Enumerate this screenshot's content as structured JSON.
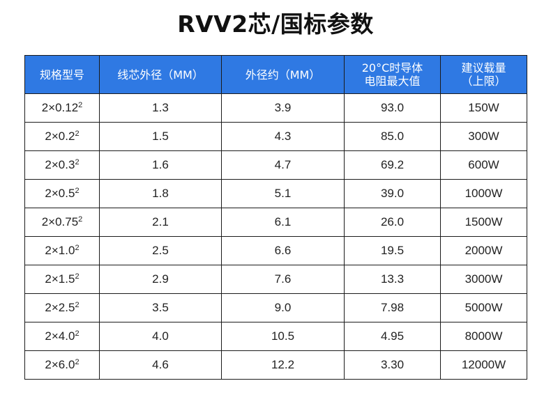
{
  "title": "RVV2芯/国标参数",
  "table": {
    "headers": [
      {
        "lines": [
          "规格型号"
        ]
      },
      {
        "lines": [
          "线芯外径（MM）"
        ]
      },
      {
        "lines": [
          "外径约（MM）"
        ]
      },
      {
        "lines": [
          "20°C时导体",
          "电阻最大值"
        ]
      },
      {
        "lines": [
          "建议载量",
          "（上限）"
        ]
      }
    ],
    "rows": [
      {
        "spec": "2×0.12",
        "sup": "2",
        "core": "1.3",
        "outer": "3.9",
        "resistance": "93.0",
        "load": "150W"
      },
      {
        "spec": "2×0.2",
        "sup": "2",
        "core": "1.5",
        "outer": "4.3",
        "resistance": "85.0",
        "load": "300W"
      },
      {
        "spec": "2×0.3",
        "sup": "2",
        "core": "1.6",
        "outer": "4.7",
        "resistance": "69.2",
        "load": "600W"
      },
      {
        "spec": "2×0.5",
        "sup": "2",
        "core": "1.8",
        "outer": "5.1",
        "resistance": "39.0",
        "load": "1000W"
      },
      {
        "spec": "2×0.75",
        "sup": "2",
        "core": "2.1",
        "outer": "6.1",
        "resistance": "26.0",
        "load": "1500W"
      },
      {
        "spec": "2×1.0",
        "sup": "2",
        "core": "2.5",
        "outer": "6.6",
        "resistance": "19.5",
        "load": "2000W"
      },
      {
        "spec": "2×1.5",
        "sup": "2",
        "core": "2.9",
        "outer": "7.6",
        "resistance": "13.3",
        "load": "3000W"
      },
      {
        "spec": "2×2.5",
        "sup": "2",
        "core": "3.5",
        "outer": "9.0",
        "resistance": "7.98",
        "load": "5000W"
      },
      {
        "spec": "2×4.0",
        "sup": "2",
        "core": "4.0",
        "outer": "10.5",
        "resistance": "4.95",
        "load": "8000W"
      },
      {
        "spec": "2×6.0",
        "sup": "2",
        "core": "4.6",
        "outer": "12.2",
        "resistance": "3.30",
        "load": "12000W"
      }
    ]
  },
  "colors": {
    "header_bg": "#2f79e3",
    "header_text": "#ffffff",
    "border": "#1a1a1a"
  }
}
